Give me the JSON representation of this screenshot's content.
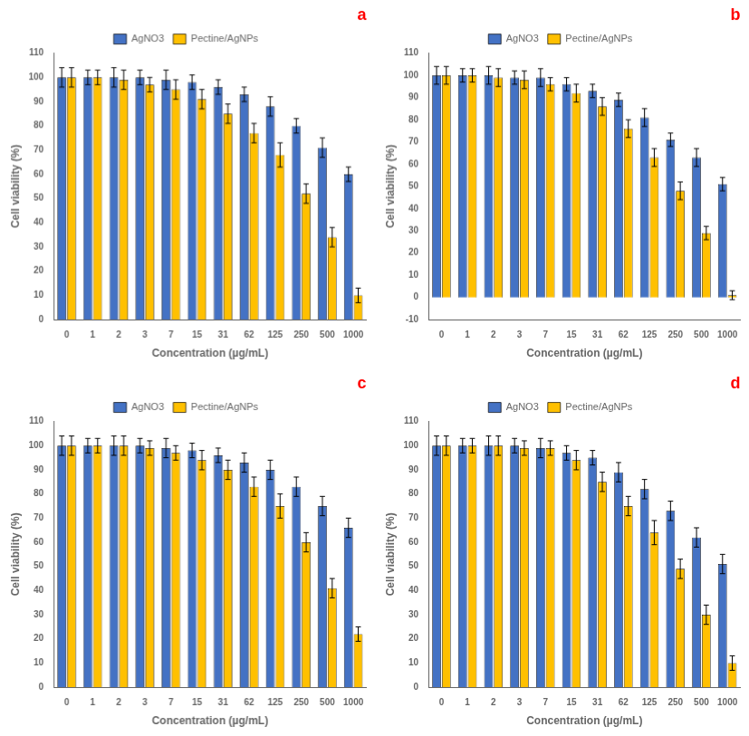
{
  "chart_data": [
    {
      "type": "bar",
      "categories": [
        "0",
        "1",
        "2",
        "3",
        "7",
        "15",
        "31",
        "62",
        "125",
        "250",
        "500",
        "1000"
      ],
      "series": [
        {
          "name": "AgNO3",
          "color": "#4472C4",
          "values": [
            100,
            100,
            100,
            100,
            99,
            98,
            96,
            93,
            88,
            80,
            71,
            60
          ],
          "errors": [
            4,
            3,
            4,
            3,
            4,
            3,
            3,
            3,
            4,
            3,
            4,
            3
          ]
        },
        {
          "name": "Pectine/AgNPs",
          "color": "#FFC000",
          "values": [
            100,
            100,
            99,
            97,
            95,
            91,
            85,
            77,
            68,
            52,
            34,
            10
          ],
          "errors": [
            4,
            3,
            4,
            3,
            4,
            4,
            4,
            4,
            5,
            4,
            4,
            3
          ]
        }
      ],
      "xlabel": "Concentration (µg/mL)",
      "ylabel": "Cell viability (%)",
      "ylim": [
        0,
        110
      ],
      "yticks": [
        0,
        10,
        20,
        30,
        40,
        50,
        60,
        70,
        80,
        90,
        100,
        110
      ],
      "annotations": [
        {
          "text": "a",
          "color": "#FF0000"
        }
      ],
      "legend": "top",
      "grid": false
    },
    {
      "type": "bar",
      "categories": [
        "0",
        "1",
        "2",
        "3",
        "7",
        "15",
        "31",
        "62",
        "125",
        "250",
        "500",
        "1000"
      ],
      "series": [
        {
          "name": "AgNO3",
          "color": "#4472C4",
          "values": [
            100,
            100,
            100,
            99,
            99,
            96,
            93,
            89,
            81,
            71,
            63,
            51
          ],
          "errors": [
            4,
            3,
            4,
            3,
            4,
            3,
            3,
            3,
            4,
            3,
            4,
            3
          ]
        },
        {
          "name": "Pectine/AgNPs",
          "color": "#FFC000",
          "values": [
            100,
            100,
            99,
            98,
            96,
            92,
            86,
            76,
            63,
            48,
            29,
            1
          ],
          "errors": [
            4,
            3,
            4,
            4,
            3,
            4,
            4,
            4,
            4,
            4,
            3,
            2
          ]
        }
      ],
      "xlabel": "Concentration (µg/mL)",
      "ylabel": "Cell viability (%)",
      "ylim": [
        -10,
        110
      ],
      "yticks": [
        -10,
        0,
        10,
        20,
        30,
        40,
        50,
        60,
        70,
        80,
        90,
        100,
        110
      ],
      "annotations": [
        {
          "text": "b",
          "color": "#FF0000"
        }
      ],
      "legend": "top",
      "grid": false
    },
    {
      "type": "bar",
      "categories": [
        "0",
        "1",
        "2",
        "3",
        "7",
        "15",
        "31",
        "62",
        "125",
        "250",
        "500",
        "1000"
      ],
      "series": [
        {
          "name": "AgNO3",
          "color": "#4472C4",
          "values": [
            100,
            100,
            100,
            100,
            99,
            98,
            96,
            93,
            90,
            83,
            75,
            66
          ],
          "errors": [
            4,
            3,
            4,
            3,
            4,
            3,
            3,
            4,
            4,
            4,
            4,
            4
          ]
        },
        {
          "name": "Pectine/AgNPs",
          "color": "#FFC000",
          "values": [
            100,
            100,
            100,
            99,
            97,
            94,
            90,
            83,
            75,
            60,
            41,
            22
          ],
          "errors": [
            4,
            3,
            4,
            3,
            3,
            4,
            4,
            4,
            5,
            4,
            4,
            3
          ]
        }
      ],
      "xlabel": "Concentration (µg/mL)",
      "ylabel": "Cell viability (%)",
      "ylim": [
        0,
        110
      ],
      "yticks": [
        0,
        10,
        20,
        30,
        40,
        50,
        60,
        70,
        80,
        90,
        100,
        110
      ],
      "annotations": [
        {
          "text": "c",
          "color": "#FF0000"
        }
      ],
      "legend": "top",
      "grid": false
    },
    {
      "type": "bar",
      "categories": [
        "0",
        "1",
        "2",
        "3",
        "7",
        "15",
        "31",
        "62",
        "125",
        "250",
        "500",
        "1000"
      ],
      "series": [
        {
          "name": "AgNO3",
          "color": "#4472C4",
          "values": [
            100,
            100,
            100,
            100,
            99,
            97,
            95,
            89,
            82,
            73,
            62,
            51
          ],
          "errors": [
            4,
            3,
            4,
            3,
            4,
            3,
            3,
            4,
            4,
            4,
            4,
            4
          ]
        },
        {
          "name": "Pectine/AgNPs",
          "color": "#FFC000",
          "values": [
            100,
            100,
            100,
            99,
            99,
            94,
            85,
            75,
            64,
            49,
            30,
            10
          ],
          "errors": [
            4,
            3,
            4,
            3,
            3,
            4,
            4,
            4,
            5,
            4,
            4,
            3
          ]
        }
      ],
      "xlabel": "Concentration (µg/mL)",
      "ylabel": "Cell viability (%)",
      "ylim": [
        0,
        110
      ],
      "yticks": [
        0,
        10,
        20,
        30,
        40,
        50,
        60,
        70,
        80,
        90,
        100,
        110
      ],
      "annotations": [
        {
          "text": "d",
          "color": "#FF0000"
        }
      ],
      "legend": "top",
      "grid": false
    }
  ]
}
